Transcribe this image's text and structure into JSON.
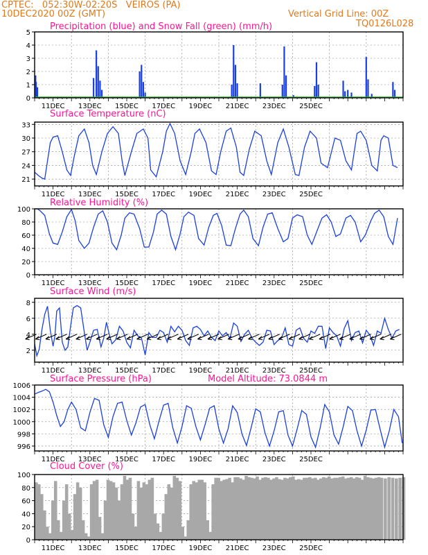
{
  "header": {
    "station": "CPTEC:   052:30W-02:20S   VEIROS (PA)",
    "init_time": "10DEC2020 00Z (GMT)",
    "grid_note": "Vertical Grid Line: 00Z",
    "run_id": "TQ0126L028"
  },
  "x_day_labels": [
    "11DEC",
    "13DEC",
    "15DEC",
    "17DEC",
    "19DEC",
    "21DEC",
    "23DEC",
    "25DEC"
  ],
  "colors": {
    "line": "#1a3fe0",
    "snow": "#2db82d",
    "cloud": "#a8a8a8",
    "title": "#ff1493",
    "header": "#e07a1c"
  },
  "chart_data": [
    {
      "type": "bar",
      "title": "Precipitation (blue) and Snow Fall (green) (mm/h)",
      "ylim": [
        0,
        5
      ],
      "yticks": [
        "0",
        "1",
        "2",
        "3",
        "4",
        "5"
      ],
      "series": [
        {
          "name": "Precipitation",
          "values": [
            [
              0.05,
              1.7
            ],
            [
              0.08,
              1.2
            ],
            [
              0.15,
              0.8
            ],
            [
              3.2,
              1.5
            ],
            [
              3.35,
              3.6
            ],
            [
              3.45,
              2.4
            ],
            [
              3.55,
              1.3
            ],
            [
              3.65,
              0.6
            ],
            [
              5.7,
              2.0
            ],
            [
              5.8,
              2.5
            ],
            [
              5.9,
              1.2
            ],
            [
              6.0,
              0.4
            ],
            [
              10.7,
              1.0
            ],
            [
              10.8,
              4.0
            ],
            [
              10.9,
              2.5
            ],
            [
              11.0,
              1.1
            ],
            [
              12.25,
              1.1
            ],
            [
              13.45,
              1.0
            ],
            [
              13.55,
              3.9
            ],
            [
              13.65,
              1.7
            ],
            [
              14.05,
              0.2
            ],
            [
              15.2,
              0.9
            ],
            [
              15.3,
              2.7
            ],
            [
              15.4,
              1.0
            ],
            [
              16.75,
              1.3
            ],
            [
              16.85,
              0.5
            ],
            [
              17.0,
              0.6
            ],
            [
              17.2,
              0.4
            ],
            [
              18.0,
              3.1
            ],
            [
              18.1,
              1.4
            ],
            [
              18.3,
              0.3
            ],
            [
              19.45,
              1.2
            ],
            [
              19.55,
              0.6
            ]
          ]
        }
      ],
      "snow": "near zero across period"
    },
    {
      "type": "line",
      "title": "Surface Temperature (nC)",
      "ylim": [
        19.5,
        33.5
      ],
      "yticks": [
        "21",
        "24",
        "27",
        "30",
        "33"
      ],
      "ytick_values": [
        21,
        24,
        27,
        30,
        33
      ],
      "x": [
        0,
        0.2,
        0.4,
        0.55,
        0.7,
        0.85,
        1.0,
        1.25,
        1.5,
        1.75,
        1.95,
        2.15,
        2.4,
        2.7,
        2.95,
        3.15,
        3.35,
        3.65,
        3.95,
        4.25,
        4.55,
        4.75,
        4.9,
        5.25,
        5.55,
        5.9,
        6.15,
        6.3,
        6.6,
        6.95,
        7.15,
        7.35,
        7.6,
        7.9,
        8.2,
        8.5,
        8.7,
        8.95,
        9.3,
        9.6,
        9.85,
        10.1,
        10.4,
        10.65,
        10.95,
        11.15,
        11.35,
        11.65,
        11.95,
        12.3,
        12.6,
        12.85,
        13.2,
        13.5,
        13.8,
        14.15,
        14.35,
        14.65,
        14.95,
        15.3,
        15.55,
        15.9,
        16.3,
        16.6,
        16.9,
        17.2,
        17.5,
        17.7,
        18.0,
        18.3,
        18.6,
        18.8,
        18.95,
        19.2,
        19.45,
        19.7
      ],
      "y": [
        22.5,
        21.8,
        21.2,
        21.0,
        25,
        29,
        30.2,
        30.5,
        27,
        23,
        21.8,
        26,
        30.5,
        32,
        29,
        24,
        22,
        27,
        31,
        32.5,
        31,
        25,
        21.8,
        27,
        31,
        32,
        30,
        23,
        21.5,
        27,
        31.5,
        33.2,
        31,
        25,
        22,
        27,
        31,
        32,
        29,
        22.8,
        22,
        27,
        31.5,
        32.2,
        28,
        22.5,
        21.8,
        27.5,
        31.5,
        30.5,
        25,
        22,
        29,
        32,
        28,
        22,
        21.8,
        28,
        31.5,
        30,
        24.5,
        23.5,
        30,
        29.5,
        25,
        23,
        31,
        31.5,
        29.5,
        24,
        22.8,
        29.5,
        30.5,
        30,
        24,
        23.5
      ]
    },
    {
      "type": "line",
      "title": "Relative Humidity (%)",
      "ylim": [
        0,
        100
      ],
      "yticks": [
        "0",
        "20",
        "40",
        "60",
        "80",
        "100"
      ],
      "ytick_values": [
        0,
        20,
        40,
        60,
        80,
        100
      ],
      "x": [
        0,
        0.15,
        0.3,
        0.55,
        0.8,
        1.0,
        1.25,
        1.5,
        1.75,
        2.0,
        2.2,
        2.4,
        2.7,
        2.95,
        3.2,
        3.45,
        3.7,
        3.95,
        4.2,
        4.45,
        4.7,
        4.9,
        5.15,
        5.4,
        5.7,
        5.95,
        6.2,
        6.45,
        6.65,
        6.9,
        7.15,
        7.4,
        7.65,
        7.9,
        8.1,
        8.35,
        8.65,
        8.9,
        9.2,
        9.45,
        9.7,
        9.9,
        10.15,
        10.4,
        10.65,
        10.9,
        11.15,
        11.35,
        11.6,
        11.85,
        12.15,
        12.4,
        12.65,
        12.9,
        13.2,
        13.5,
        13.75,
        14.0,
        14.25,
        14.55,
        14.8,
        15.05,
        15.35,
        15.6,
        15.85,
        16.1,
        16.35,
        16.6,
        16.9,
        17.15,
        17.4,
        17.7,
        17.95,
        18.25,
        18.45,
        18.7,
        18.95,
        19.2,
        19.45,
        19.7
      ],
      "y": [
        100,
        100,
        97,
        90,
        62,
        48,
        46,
        65,
        88,
        99,
        82,
        52,
        40,
        48,
        72,
        92,
        97,
        80,
        48,
        38,
        60,
        86,
        94,
        92,
        70,
        42,
        42,
        65,
        92,
        98,
        92,
        58,
        38,
        62,
        88,
        95,
        90,
        55,
        45,
        72,
        90,
        93,
        75,
        45,
        44,
        70,
        92,
        98,
        88,
        55,
        44,
        72,
        92,
        94,
        70,
        50,
        55,
        86,
        91,
        88,
        60,
        46,
        68,
        86,
        91,
        80,
        58,
        62,
        86,
        90,
        80,
        50,
        60,
        82,
        93,
        98,
        88,
        58,
        46,
        86
      ]
    },
    {
      "type": "line",
      "title": "Surface Wind (m/s)",
      "ylim": [
        0.5,
        8.5
      ],
      "yticks": [
        "2",
        "4",
        "6",
        "8"
      ],
      "ytick_values": [
        2,
        4,
        6,
        8
      ],
      "x": [
        0,
        0.12,
        0.25,
        0.4,
        0.55,
        0.7,
        0.85,
        1.0,
        1.1,
        1.2,
        1.35,
        1.5,
        1.65,
        1.8,
        1.95,
        2.1,
        2.3,
        2.5,
        2.7,
        2.85,
        3.0,
        3.2,
        3.4,
        3.6,
        3.75,
        3.9,
        4.05,
        4.2,
        4.4,
        4.6,
        4.8,
        5.0,
        5.2,
        5.4,
        5.6,
        5.8,
        6.0,
        6.2,
        6.4,
        6.6,
        6.8,
        7.0,
        7.2,
        7.4,
        7.6,
        7.8,
        8.0,
        8.2,
        8.4,
        8.6,
        8.8,
        9.0,
        9.2,
        9.4,
        9.6,
        9.8,
        10.0,
        10.2,
        10.4,
        10.6,
        10.8,
        11.0,
        11.2,
        11.4,
        11.6,
        11.8,
        12.0,
        12.2,
        12.4,
        12.6,
        12.8,
        13.0,
        13.2,
        13.4,
        13.6,
        13.8,
        14.0,
        14.2,
        14.4,
        14.6,
        14.8,
        15.0,
        15.2,
        15.4,
        15.6,
        15.8,
        16.0,
        16.2,
        16.4,
        16.6,
        16.8,
        17.0,
        17.2,
        17.4,
        17.6,
        17.8,
        18.0,
        18.2,
        18.4,
        18.6,
        18.8,
        19.0,
        19.2,
        19.4,
        19.6,
        19.8
      ],
      "y": [
        2.8,
        1.3,
        2.1,
        4.6,
        6.5,
        7.5,
        4.5,
        2.5,
        3.8,
        6.9,
        7.3,
        3.0,
        2.0,
        2.4,
        5.0,
        7.3,
        7.6,
        7.3,
        4.2,
        2.0,
        3.0,
        4.5,
        4.6,
        2.4,
        3.5,
        5.5,
        4.0,
        2.8,
        3.3,
        5.0,
        4.4,
        3.0,
        2.3,
        4.5,
        3.8,
        3.5,
        1.4,
        4.2,
        3.6,
        3.6,
        4.5,
        4.2,
        3.0,
        5.0,
        4.3,
        5.0,
        4.5,
        3.2,
        2.6,
        4.8,
        5.0,
        4.6,
        3.8,
        4.4,
        3.6,
        3.2,
        4.4,
        3.8,
        4.2,
        3.5,
        5.4,
        5.0,
        3.1,
        4.0,
        4.5,
        3.5,
        3.0,
        2.6,
        3.0,
        4.5,
        4.4,
        2.7,
        3.2,
        3.5,
        4.8,
        2.7,
        2.5,
        4.5,
        4.8,
        3.5,
        3.0,
        4.4,
        4.1,
        5.0,
        5.0,
        2.2,
        4.8,
        4.2,
        3.8,
        2.5,
        4.7,
        5.7,
        3.2,
        4.2,
        4.4,
        2.9,
        4.5,
        3.9,
        2.6,
        4.4,
        4.1,
        6.0,
        4.6,
        3.5,
        4.4,
        4.6
      ],
      "arrows": "wind vectors along y=4"
    },
    {
      "type": "line",
      "title": "Surface Pressure (hPa)",
      "subtitle": "Model Altitude: 73.0844 m",
      "ylim": [
        995.2,
        1006
      ],
      "yticks": [
        "996",
        "998",
        "1000",
        "1002",
        "1004",
        "1006"
      ],
      "ytick_values": [
        996,
        998,
        1000,
        1002,
        1004,
        1006
      ],
      "x": [
        0,
        0.2,
        0.4,
        0.6,
        0.8,
        1.0,
        1.2,
        1.4,
        1.6,
        1.8,
        2.0,
        2.25,
        2.5,
        2.75,
        3.0,
        3.25,
        3.5,
        3.75,
        4.0,
        4.25,
        4.5,
        4.75,
        5.0,
        5.25,
        5.5,
        5.75,
        6.0,
        6.25,
        6.5,
        6.75,
        7.0,
        7.25,
        7.5,
        7.75,
        8.0,
        8.25,
        8.5,
        8.75,
        9.0,
        9.25,
        9.5,
        9.75,
        10.0,
        10.25,
        10.5,
        10.75,
        11.0,
        11.25,
        11.5,
        11.75,
        12.0,
        12.25,
        12.5,
        12.75,
        13.0,
        13.25,
        13.5,
        13.75,
        14.0,
        14.25,
        14.5,
        14.75,
        15.0,
        15.25,
        15.5,
        15.75,
        16.0,
        16.25,
        16.5,
        16.75,
        17.0,
        17.25,
        17.5,
        17.75,
        18.0,
        18.25,
        18.5,
        18.75,
        19.0,
        19.25,
        19.5,
        19.75,
        19.95
      ],
      "y": [
        1004.5,
        1004.8,
        1005.0,
        1005.3,
        1004.9,
        1003.2,
        1001.0,
        999.2,
        1000.0,
        1002.0,
        1003.2,
        1002.0,
        999.0,
        998.5,
        1001.5,
        1003.8,
        1003.5,
        999.5,
        997.4,
        1000.8,
        1003.0,
        1003.2,
        1000.2,
        997.8,
        999.8,
        1002.4,
        1002.8,
        999.5,
        997.2,
        1000.1,
        1002.7,
        1003.0,
        999.0,
        996.5,
        999.2,
        1002.6,
        1002.2,
        999.2,
        997.0,
        999.5,
        1002.2,
        1002.6,
        998.8,
        996.5,
        998.8,
        1002.6,
        1001.5,
        998.0,
        996.1,
        999.0,
        1002.1,
        1001.6,
        998.2,
        996.0,
        998.5,
        1001.6,
        1001.8,
        997.8,
        996.0,
        998.8,
        1001.8,
        1001.2,
        997.5,
        995.8,
        999.0,
        1002.8,
        1001.6,
        997.8,
        996.3,
        999.2,
        1002.5,
        1001.8,
        998.5,
        996.0,
        998.6,
        1001.9,
        1002.0,
        998.8,
        995.8,
        998.5,
        1002.0,
        1000.8,
        996.5
      ]
    },
    {
      "type": "area",
      "title": "Cloud Cover (%)",
      "ylim": [
        0,
        100
      ],
      "yticks": [
        "0",
        "20",
        "40",
        "60",
        "80",
        "100"
      ],
      "ytick_values": [
        0,
        20,
        40,
        60,
        80,
        100
      ],
      "x": [
        0,
        0.15,
        0.3,
        0.45,
        0.6,
        0.75,
        0.9,
        1.05,
        1.2,
        1.35,
        1.5,
        1.65,
        1.8,
        1.95,
        2.1,
        2.25,
        2.4,
        2.55,
        2.7,
        2.85,
        3.0,
        3.15,
        3.3,
        3.45,
        3.6,
        3.75,
        3.9,
        4.05,
        4.2,
        4.35,
        4.5,
        4.65,
        4.8,
        4.95,
        5.1,
        5.25,
        5.4,
        5.55,
        5.7,
        5.85,
        6.0,
        6.15,
        6.3,
        6.45,
        6.6,
        6.75,
        6.9,
        7.05,
        7.2,
        7.35,
        7.5,
        7.65,
        7.8,
        7.95,
        8.1,
        8.25,
        8.4,
        8.55,
        8.7,
        8.85,
        9.0,
        9.15,
        9.3,
        9.45,
        9.6,
        9.75,
        9.9,
        10.05,
        10.2,
        10.35,
        10.5,
        10.65,
        10.8,
        10.95,
        11.1,
        11.25,
        11.4,
        11.55,
        11.7,
        11.85,
        12.0,
        12.15,
        12.3,
        12.45,
        12.6,
        12.75,
        12.9,
        13.05,
        13.2,
        13.35,
        13.5,
        13.65,
        13.8,
        13.95,
        14.1,
        14.25,
        14.4,
        14.55,
        14.7,
        14.85,
        15.0,
        15.15,
        15.3,
        15.45,
        15.6,
        15.75,
        15.9,
        16.05,
        16.2,
        16.35,
        16.5,
        16.65,
        16.8,
        16.95,
        17.1,
        17.25,
        17.4,
        17.55,
        17.7,
        17.85,
        18.0,
        18.15,
        18.3,
        18.45,
        18.6,
        18.75,
        18.95,
        19.15,
        19.35,
        19.55,
        19.75,
        19.95
      ],
      "y": [
        88,
        85,
        70,
        45,
        20,
        10,
        60,
        90,
        30,
        12,
        60,
        85,
        40,
        15,
        70,
        88,
        80,
        30,
        10,
        5,
        85,
        90,
        92,
        35,
        10,
        60,
        92,
        90,
        88,
        80,
        60,
        85,
        98,
        92,
        95,
        40,
        20,
        90,
        80,
        88,
        85,
        92,
        95,
        40,
        25,
        12,
        40,
        70,
        85,
        80,
        98,
        95,
        90,
        20,
        5,
        30,
        85,
        90,
        88,
        92,
        92,
        88,
        30,
        12,
        85,
        95,
        95,
        90,
        92,
        93,
        95,
        88,
        96,
        96,
        94,
        92,
        98,
        96,
        95,
        94,
        97,
        92,
        95,
        96,
        95,
        92,
        94,
        96,
        93,
        92,
        95,
        94,
        96,
        97,
        92,
        93,
        92,
        95,
        95,
        96,
        94,
        95,
        92,
        94,
        96,
        95,
        97,
        94,
        95,
        95,
        96,
        97,
        94,
        95,
        96,
        94,
        96,
        95,
        92,
        98,
        96,
        95,
        94,
        95,
        96,
        95,
        94,
        96,
        95,
        94,
        95,
        96
      ]
    }
  ]
}
